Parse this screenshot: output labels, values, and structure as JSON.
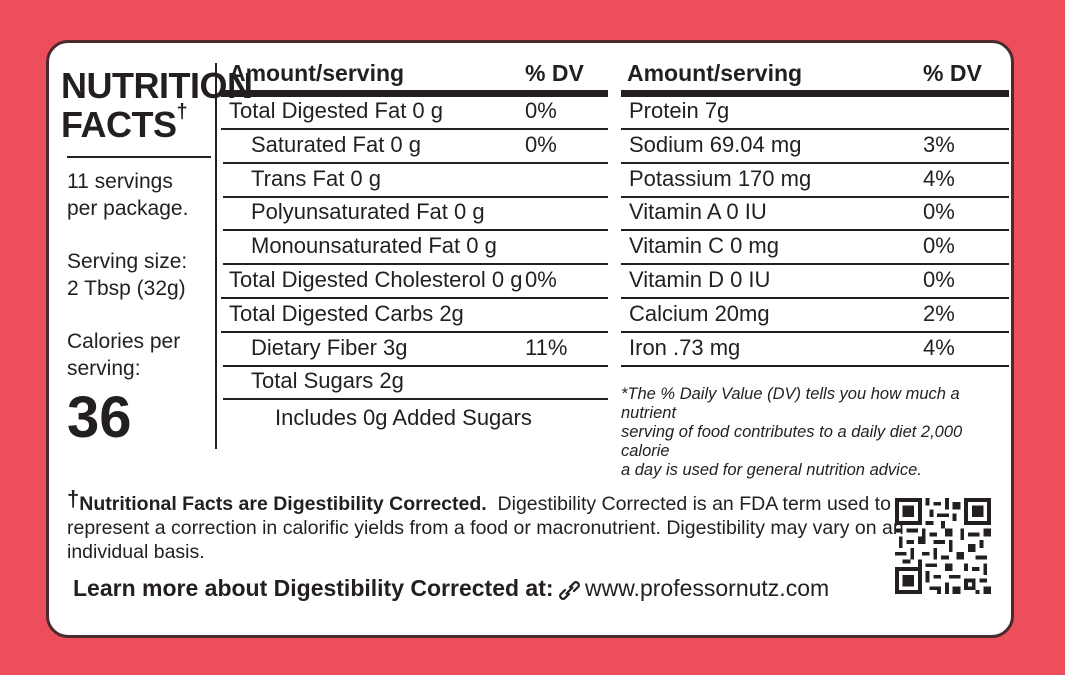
{
  "label": {
    "title_line1": "NUTRITION",
    "title_line2": "FACTS",
    "title_mark": "†",
    "servings_line1": "11 servings",
    "servings_line2": "per package.",
    "serving_size_line1": "Serving size:",
    "serving_size_line2": "2 Tbsp (32g)",
    "calories_line1": "Calories per",
    "calories_line2": "serving:",
    "calories_value": "36"
  },
  "left_table": {
    "header_amount": "Amount/serving",
    "header_dv": "% DV",
    "rows": [
      {
        "name": "Total Digested Fat 0 g",
        "dv": "0%",
        "indent": false
      },
      {
        "name": "Saturated Fat 0 g",
        "dv": "0%",
        "indent": true
      },
      {
        "name": "Trans Fat 0 g",
        "dv": "",
        "indent": true
      },
      {
        "name": "Polyunsaturated Fat 0 g",
        "dv": "",
        "indent": true
      },
      {
        "name": "Monounsaturated Fat 0 g",
        "dv": "",
        "indent": true
      },
      {
        "name": "Total Digested Cholesterol 0 g",
        "dv": "0%",
        "indent": false
      },
      {
        "name": "Total Digested Carbs  2g",
        "dv": "",
        "indent": false
      },
      {
        "name": "Dietary Fiber 3g",
        "dv": "11%",
        "indent": true
      },
      {
        "name": "Total Sugars  2g",
        "dv": "",
        "indent": true
      }
    ],
    "added_sugars": "Includes 0g Added Sugars"
  },
  "right_table": {
    "header_amount": "Amount/serving",
    "header_dv": "% DV",
    "rows": [
      {
        "name": "Protein 7g",
        "dv": ""
      },
      {
        "name": "Sodium 69.04  mg",
        "dv": "3%"
      },
      {
        "name": "Potassium  170 mg",
        "dv": "4%"
      },
      {
        "name": "Vitamin A 0 IU",
        "dv": "0%"
      },
      {
        "name": "Vitamin C 0 mg",
        "dv": "0%"
      },
      {
        "name": "Vitamin D 0 IU",
        "dv": "0%"
      },
      {
        "name": "Calcium  20mg",
        "dv": "2%"
      },
      {
        "name": "Iron  .73 mg",
        "dv": "4%"
      }
    ],
    "footnote_line1": "*The % Daily Value (DV) tells you how much a nutrient",
    "footnote_line2": "serving of food contributes to a daily diet 2,000 calorie",
    "footnote_line3": "a day is used for general nutrition advice."
  },
  "footer": {
    "dagger": "†",
    "bold_text": "Nutritional Facts are Digestibility Corrected.",
    "text_line1": "  Digestibility Corrected is an FDA term used to",
    "text_line2": "represent a correction in calorific yields from a food or macronutrient. Digestibility may vary on an",
    "text_line3": "individual basis.",
    "learn_more": "Learn more about Digestibility Corrected at:",
    "url": "www.professornutz.com",
    "link_icon": "link-icon",
    "qr_icon": "qr-code-icon"
  },
  "colors": {
    "background": "#ec4e5c",
    "card": "#ffffff",
    "border": "#4a2a2c",
    "text": "#231f20"
  }
}
